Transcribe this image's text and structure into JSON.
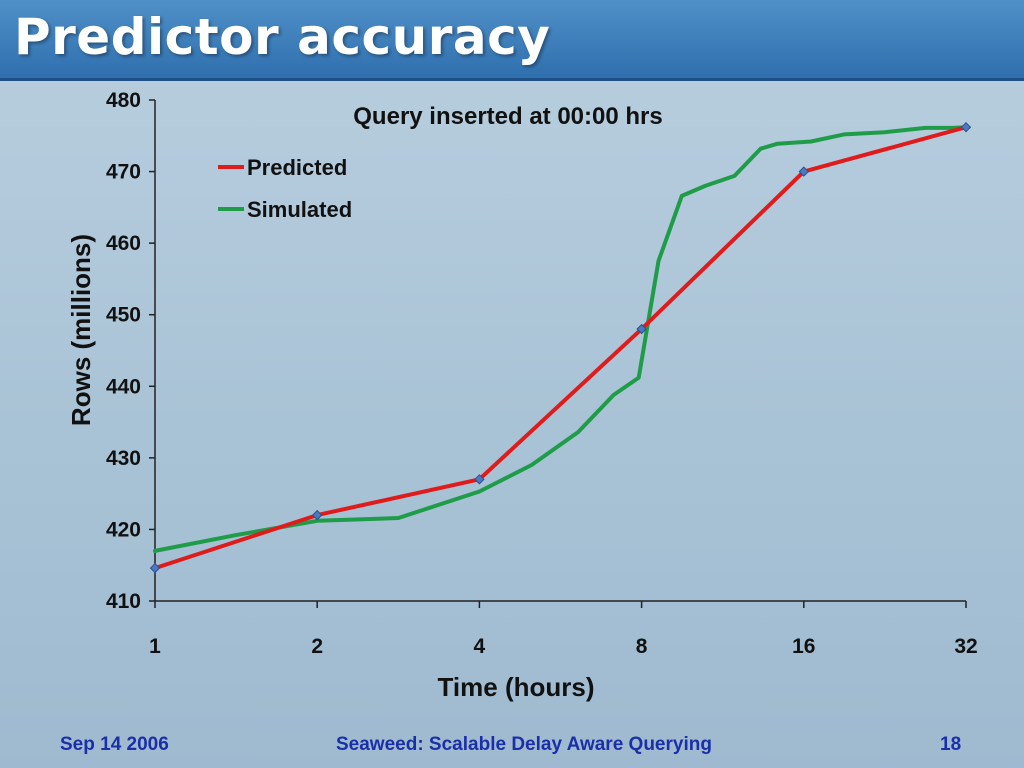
{
  "slide": {
    "title": "Predictor accuracy",
    "footer_left": "Sep 14 2006",
    "footer_center": "Seaweed: Scalable Delay Aware Querying",
    "footer_right": "18"
  },
  "chart_data": {
    "type": "line",
    "title": "Query inserted at 00:00 hrs",
    "xlabel": "Time (hours)",
    "ylabel": "Rows (millions)",
    "xscale": "log2",
    "xlim": [
      1,
      32
    ],
    "ylim": [
      410,
      480
    ],
    "xticks": [
      1,
      2,
      4,
      8,
      16,
      32
    ],
    "yticks": [
      410,
      420,
      430,
      440,
      450,
      460,
      470,
      480
    ],
    "legend": "top-left",
    "grid": false,
    "series": [
      {
        "name": "Predicted",
        "color": "#e01b1b",
        "markers": true,
        "x": [
          1,
          2,
          4,
          8,
          16,
          32
        ],
        "y": [
          414.6,
          422,
          427,
          448,
          470,
          476.2
        ]
      },
      {
        "name": "Simulated",
        "color": "#1f9c48",
        "markers": false,
        "x": [
          1,
          1.41,
          2,
          2.83,
          4,
          5,
          6.1,
          7.1,
          7.9,
          8.6,
          9.5,
          10.5,
          11.9,
          13.3,
          14.3,
          16.5,
          19,
          22.6,
          26.9,
          30.2,
          32
        ],
        "y": [
          417,
          419.2,
          421.2,
          421.6,
          425.3,
          429,
          433.6,
          438.8,
          441.2,
          457.5,
          466.6,
          468,
          469.4,
          473.2,
          473.9,
          474.2,
          475.2,
          475.5,
          476.1,
          476.1,
          476.2
        ]
      }
    ]
  }
}
